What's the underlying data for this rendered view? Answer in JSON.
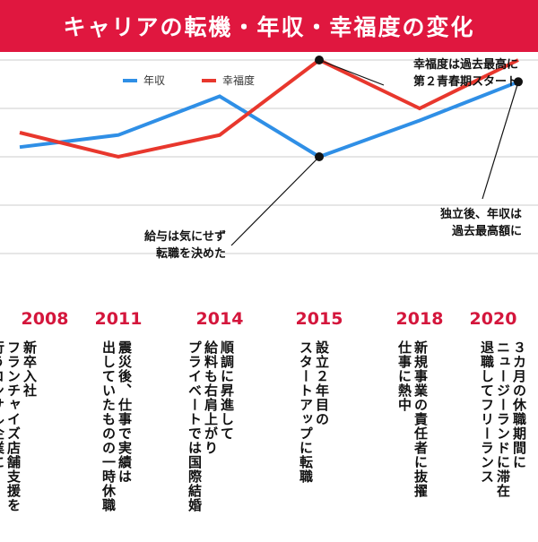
{
  "title": "キャリアの転機・年収・幸福度の変化",
  "colors": {
    "accent": "#e0173f",
    "income": "#2f8fe6",
    "happiness": "#e8372d",
    "grid": "#cccccc"
  },
  "chart_data": {
    "type": "line",
    "title": "キャリアの転機・年収・幸福度の変化",
    "categories": [
      "2008",
      "2011",
      "2014",
      "2015",
      "2018",
      "2020"
    ],
    "ylim": [
      0,
      5
    ],
    "grid": true,
    "legend_position": "top-center",
    "series": [
      {
        "name": "年収",
        "color": "#2f8fe6",
        "values": [
          2.2,
          2.45,
          3.25,
          2.0,
          2.75,
          3.55
        ]
      },
      {
        "name": "幸福度",
        "color": "#e8372d",
        "values": [
          2.5,
          2.0,
          2.45,
          4.0,
          3.0,
          4.0
        ]
      }
    ],
    "annotations": [
      {
        "text": "幸福度は過去最高に\n第２青春期スタート",
        "series": 1,
        "index": 3
      },
      {
        "text": "独立後、年収は\n過去最高額に",
        "series": 0,
        "index": 5
      },
      {
        "text": "給与は気にせず\n転職を決めた",
        "series": 0,
        "index": 3
      }
    ]
  },
  "timeline": [
    {
      "year": "2008",
      "text": "新卒入社\nフランチャイズ店舗支援を\n行うコンサル企業に"
    },
    {
      "year": "2011",
      "text": "震災後、仕事で実績は\n出していたものの一時休職"
    },
    {
      "year": "2014",
      "text": "順調に昇進して\n給料も右肩上がり\nプライベートでは国際結婚"
    },
    {
      "year": "2015",
      "text": "設立２年目の\nスタートアップに転職"
    },
    {
      "year": "2018",
      "text": "新規事業の責任者に抜擢\n仕事に熱中"
    },
    {
      "year": "2020",
      "text": "３カ月の休職期間に\nニュージーランドに滞在\n退職してフリーランス"
    }
  ]
}
